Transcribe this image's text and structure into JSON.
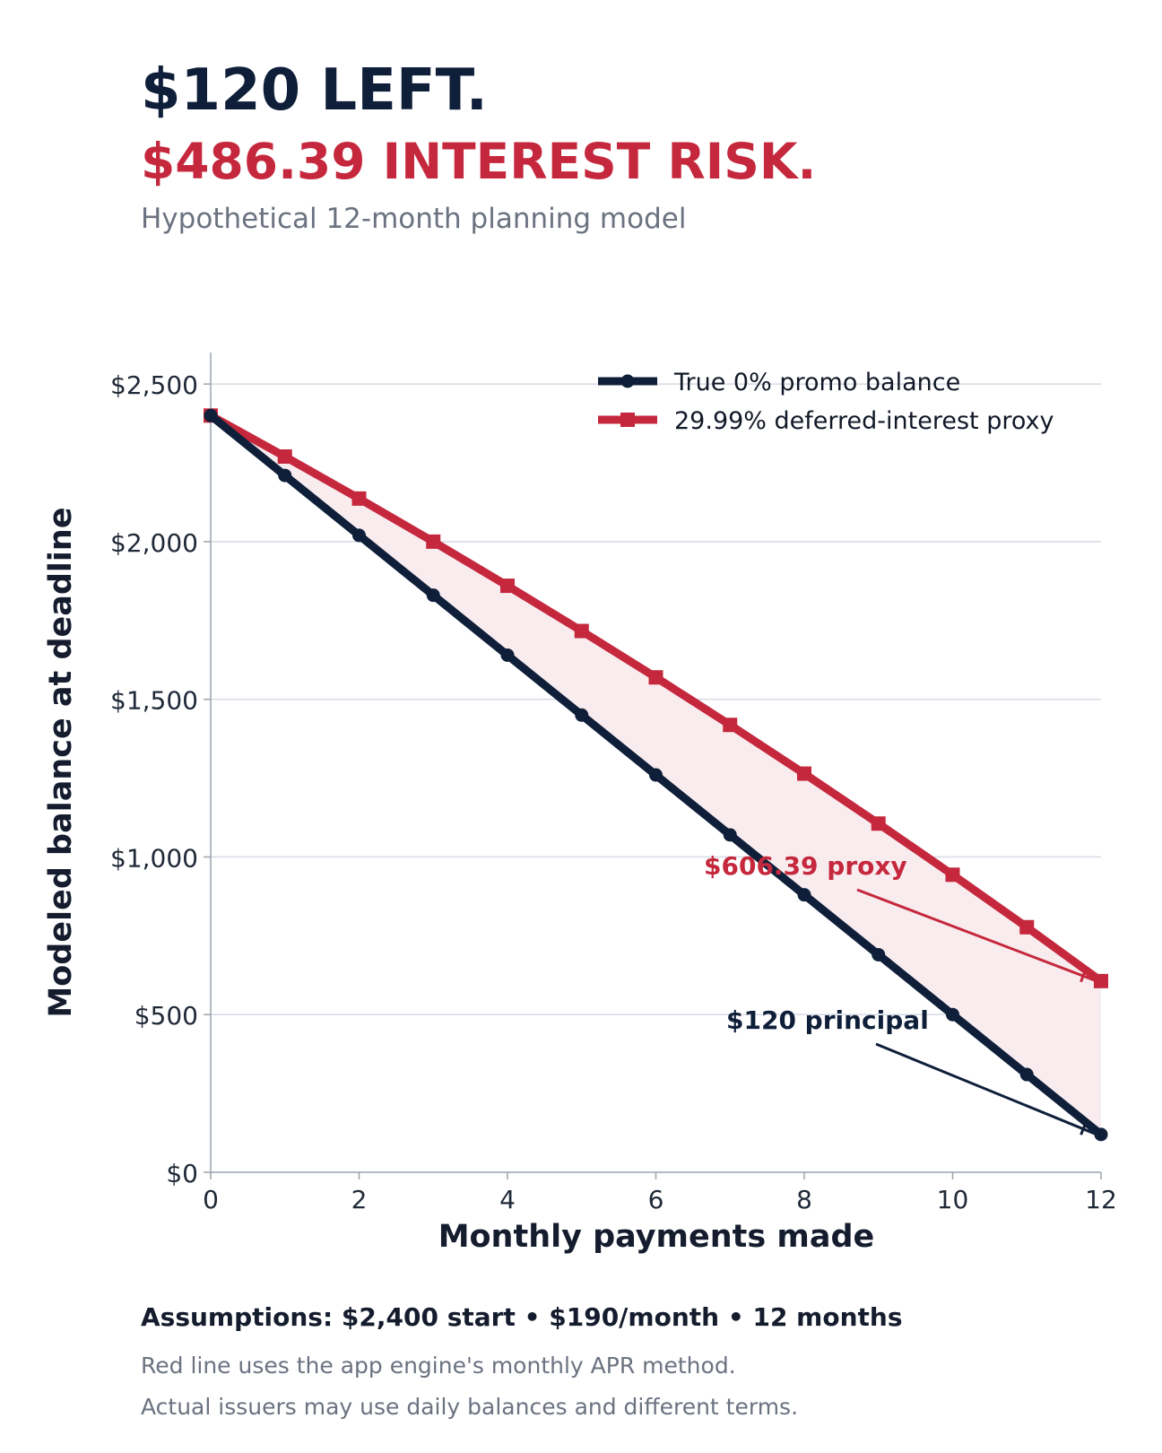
{
  "header": {
    "headline_1": "$120 LEFT.",
    "headline_2": "$486.39 INTEREST RISK.",
    "subtitle": "Hypothetical 12-month planning model"
  },
  "colors": {
    "navy": "#0f1f3a",
    "red": "#c5283d",
    "fill": "#f9ecef",
    "grid": "#d9dde6",
    "muted": "#6b7280"
  },
  "chart_data": {
    "type": "line",
    "xlabel": "Monthly payments made",
    "ylabel": "Modeled balance at deadline",
    "xlim": [
      0,
      12
    ],
    "ylim": [
      0,
      2600
    ],
    "x_ticks": [
      0,
      2,
      4,
      6,
      8,
      10,
      12
    ],
    "y_ticks": [
      0,
      500,
      1000,
      1500,
      2000,
      2500
    ],
    "y_tick_labels": [
      "$0",
      "$500",
      "$1,000",
      "$1,500",
      "$2,000",
      "$2,500"
    ],
    "grid": "horizontal",
    "legend_position": "top-right",
    "x": [
      0,
      1,
      2,
      3,
      4,
      5,
      6,
      7,
      8,
      9,
      10,
      11,
      12
    ],
    "series": [
      {
        "name": "True 0% promo balance",
        "color": "#0f1f3a",
        "marker": "circle",
        "values": [
          2400,
          2210,
          2020,
          1830,
          1640,
          1450,
          1260,
          1070,
          880,
          690,
          500,
          310,
          120
        ]
      },
      {
        "name": "29.99% deferred-interest proxy",
        "color": "#c5283d",
        "marker": "square",
        "values": [
          2400,
          2269.98,
          2136.71,
          2000.12,
          1860.12,
          1716.63,
          1569.56,
          1418.81,
          1264.3,
          1105.94,
          943.63,
          777.27,
          606.39
        ]
      }
    ],
    "fill_between": true,
    "annotations": [
      {
        "text": "$606.39 proxy",
        "x": 12,
        "y": 606.39,
        "color": "#c5283d"
      },
      {
        "text": "$120 principal",
        "x": 12,
        "y": 120,
        "color": "#0f1f3a"
      }
    ]
  },
  "footer": {
    "assumptions": "Assumptions: $2,400 start • $190/month • 12 months",
    "note_1": "Red line uses the app engine's monthly APR method.",
    "note_2": "Actual issuers may use daily balances and different terms."
  }
}
